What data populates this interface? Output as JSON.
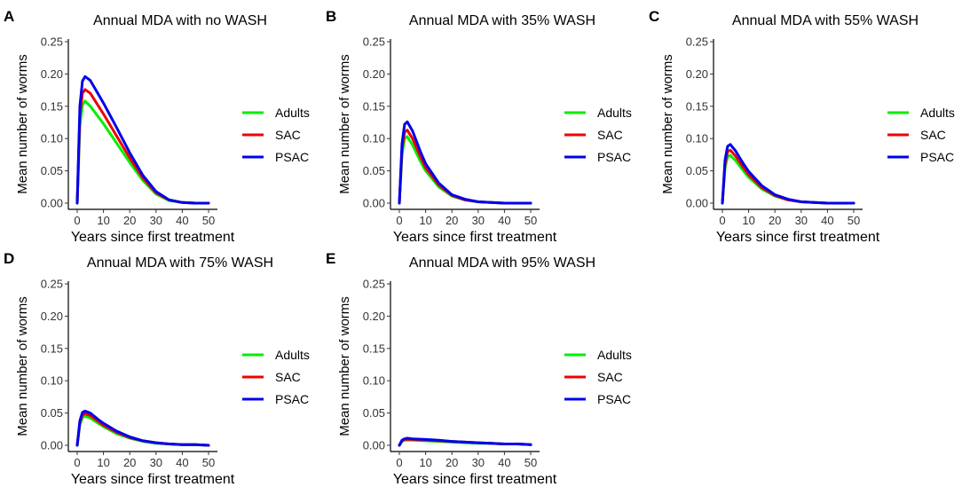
{
  "figure": {
    "legend_items": [
      {
        "label": "Adults",
        "color": "#00ee00"
      },
      {
        "label": "SAC",
        "color": "#ee0000"
      },
      {
        "label": "PSAC",
        "color": "#0000ee"
      }
    ]
  },
  "chart_data": [
    {
      "type": "line",
      "panel_letter": "A",
      "title": "Annual MDA with no WASH",
      "xlabel": "Years since first treatment",
      "ylabel": "Mean number of worms",
      "xlim": [
        0,
        50
      ],
      "ylim": [
        0,
        0.25
      ],
      "xticks": [
        0,
        10,
        20,
        30,
        40,
        50
      ],
      "yticks": [
        "0.00",
        "0.05",
        "0.10",
        "0.15",
        "0.20",
        "0.25"
      ],
      "legend": "right",
      "series": [
        {
          "name": "Adults",
          "color": "#00ee00",
          "x": [
            0,
            1,
            2,
            3,
            5,
            10,
            15,
            20,
            25,
            30,
            35,
            40,
            45,
            50
          ],
          "values": [
            0,
            0.12,
            0.152,
            0.158,
            0.15,
            0.123,
            0.093,
            0.063,
            0.035,
            0.014,
            0.004,
            0.001,
            0,
            0
          ]
        },
        {
          "name": "SAC",
          "color": "#ee0000",
          "x": [
            0,
            1,
            2,
            3,
            5,
            10,
            15,
            20,
            25,
            30,
            35,
            40,
            45,
            50
          ],
          "values": [
            0,
            0.135,
            0.17,
            0.176,
            0.17,
            0.138,
            0.104,
            0.07,
            0.039,
            0.016,
            0.005,
            0.001,
            0,
            0
          ]
        },
        {
          "name": "PSAC",
          "color": "#0000ee",
          "x": [
            0,
            1,
            2,
            3,
            5,
            10,
            15,
            20,
            25,
            30,
            35,
            40,
            45,
            50
          ],
          "values": [
            0,
            0.15,
            0.189,
            0.196,
            0.19,
            0.155,
            0.117,
            0.078,
            0.043,
            0.018,
            0.005,
            0.001,
            0,
            0
          ]
        }
      ]
    },
    {
      "type": "line",
      "panel_letter": "B",
      "title": "Annual MDA with 35% WASH",
      "xlabel": "Years since first treatment",
      "ylabel": "Mean number of worms",
      "xlim": [
        0,
        50
      ],
      "ylim": [
        0,
        0.25
      ],
      "xticks": [
        0,
        10,
        20,
        30,
        40,
        50
      ],
      "yticks": [
        "0.00",
        "0.05",
        "0.10",
        "0.15",
        "0.20",
        "0.25"
      ],
      "legend": "right",
      "series": [
        {
          "name": "Adults",
          "color": "#00ee00",
          "x": [
            0,
            1,
            2,
            3,
            5,
            8,
            10,
            15,
            20,
            25,
            30,
            35,
            40,
            45,
            50
          ],
          "values": [
            0,
            0.075,
            0.1,
            0.103,
            0.09,
            0.065,
            0.05,
            0.025,
            0.011,
            0.005,
            0.002,
            0.001,
            0,
            0,
            0
          ]
        },
        {
          "name": "SAC",
          "color": "#ee0000",
          "x": [
            0,
            1,
            2,
            3,
            5,
            8,
            10,
            15,
            20,
            25,
            30,
            35,
            40,
            45,
            50
          ],
          "values": [
            0,
            0.083,
            0.11,
            0.113,
            0.1,
            0.072,
            0.055,
            0.028,
            0.012,
            0.005,
            0.002,
            0.001,
            0,
            0,
            0
          ]
        },
        {
          "name": "PSAC",
          "color": "#0000ee",
          "x": [
            0,
            1,
            2,
            3,
            5,
            8,
            10,
            15,
            20,
            25,
            30,
            35,
            40,
            45,
            50
          ],
          "values": [
            0,
            0.092,
            0.122,
            0.126,
            0.112,
            0.08,
            0.061,
            0.031,
            0.013,
            0.006,
            0.002,
            0.001,
            0,
            0,
            0
          ]
        }
      ]
    },
    {
      "type": "line",
      "panel_letter": "C",
      "title": "Annual MDA with 55% WASH",
      "xlabel": "Years since first treatment",
      "ylabel": "Mean number of worms",
      "xlim": [
        0,
        50
      ],
      "ylim": [
        0,
        0.25
      ],
      "xticks": [
        0,
        10,
        20,
        30,
        40,
        50
      ],
      "yticks": [
        "0.00",
        "0.05",
        "0.10",
        "0.15",
        "0.20",
        "0.25"
      ],
      "legend": "right",
      "series": [
        {
          "name": "Adults",
          "color": "#00ee00",
          "x": [
            0,
            1,
            2,
            3,
            5,
            8,
            10,
            15,
            20,
            25,
            30,
            35,
            40,
            45,
            50
          ],
          "values": [
            0,
            0.055,
            0.072,
            0.074,
            0.066,
            0.05,
            0.04,
            0.022,
            0.011,
            0.005,
            0.002,
            0.001,
            0,
            0,
            0
          ]
        },
        {
          "name": "SAC",
          "color": "#ee0000",
          "x": [
            0,
            1,
            2,
            3,
            5,
            8,
            10,
            15,
            20,
            25,
            30,
            35,
            40,
            45,
            50
          ],
          "values": [
            0,
            0.061,
            0.08,
            0.082,
            0.073,
            0.055,
            0.044,
            0.024,
            0.012,
            0.005,
            0.002,
            0.001,
            0,
            0,
            0
          ]
        },
        {
          "name": "PSAC",
          "color": "#0000ee",
          "x": [
            0,
            1,
            2,
            3,
            5,
            8,
            10,
            15,
            20,
            25,
            30,
            35,
            40,
            45,
            50
          ],
          "values": [
            0,
            0.067,
            0.088,
            0.091,
            0.081,
            0.061,
            0.049,
            0.027,
            0.013,
            0.006,
            0.002,
            0.001,
            0,
            0,
            0
          ]
        }
      ]
    },
    {
      "type": "line",
      "panel_letter": "D",
      "title": "Annual MDA with 75% WASH",
      "xlabel": "Years since first treatment",
      "ylabel": "Mean number of worms",
      "xlim": [
        0,
        50
      ],
      "ylim": [
        0,
        0.25
      ],
      "xticks": [
        0,
        10,
        20,
        30,
        40,
        50
      ],
      "yticks": [
        "0.00",
        "0.05",
        "0.10",
        "0.15",
        "0.20",
        "0.25"
      ],
      "legend": "right",
      "series": [
        {
          "name": "Adults",
          "color": "#00ee00",
          "x": [
            0,
            1,
            2,
            3,
            5,
            8,
            10,
            15,
            20,
            25,
            30,
            35,
            40,
            45,
            50
          ],
          "values": [
            0,
            0.032,
            0.043,
            0.045,
            0.042,
            0.034,
            0.029,
            0.018,
            0.011,
            0.006,
            0.003,
            0.002,
            0.001,
            0.001,
            0
          ]
        },
        {
          "name": "SAC",
          "color": "#ee0000",
          "x": [
            0,
            1,
            2,
            3,
            5,
            8,
            10,
            15,
            20,
            25,
            30,
            35,
            40,
            45,
            50
          ],
          "values": [
            0,
            0.035,
            0.047,
            0.049,
            0.046,
            0.037,
            0.031,
            0.02,
            0.012,
            0.007,
            0.004,
            0.002,
            0.001,
            0.001,
            0
          ]
        },
        {
          "name": "PSAC",
          "color": "#0000ee",
          "x": [
            0,
            1,
            2,
            3,
            5,
            8,
            10,
            15,
            20,
            25,
            30,
            35,
            40,
            45,
            50
          ],
          "values": [
            0,
            0.038,
            0.051,
            0.053,
            0.05,
            0.04,
            0.034,
            0.022,
            0.013,
            0.007,
            0.004,
            0.002,
            0.001,
            0.001,
            0
          ]
        }
      ]
    },
    {
      "type": "line",
      "panel_letter": "E",
      "title": "Annual MDA with 95% WASH",
      "xlabel": "Years since first treatment",
      "ylabel": "Mean number of worms",
      "xlim": [
        0,
        50
      ],
      "ylim": [
        0,
        0.25
      ],
      "xticks": [
        0,
        10,
        20,
        30,
        40,
        50
      ],
      "yticks": [
        "0.00",
        "0.05",
        "0.10",
        "0.15",
        "0.20",
        "0.25"
      ],
      "legend": "right",
      "series": [
        {
          "name": "Adults",
          "color": "#00ee00",
          "x": [
            0,
            1,
            2,
            3,
            5,
            10,
            15,
            20,
            25,
            30,
            35,
            40,
            45,
            50
          ],
          "values": [
            0,
            0.006,
            0.008,
            0.008,
            0.008,
            0.007,
            0.006,
            0.005,
            0.004,
            0.003,
            0.003,
            0.002,
            0.002,
            0.001
          ]
        },
        {
          "name": "SAC",
          "color": "#ee0000",
          "x": [
            0,
            1,
            2,
            3,
            5,
            10,
            15,
            20,
            25,
            30,
            35,
            40,
            45,
            50
          ],
          "values": [
            0,
            0.007,
            0.009,
            0.009,
            0.009,
            0.008,
            0.007,
            0.006,
            0.005,
            0.004,
            0.003,
            0.002,
            0.002,
            0.001
          ]
        },
        {
          "name": "PSAC",
          "color": "#0000ee",
          "x": [
            0,
            1,
            2,
            3,
            5,
            10,
            15,
            20,
            25,
            30,
            35,
            40,
            45,
            50
          ],
          "values": [
            0,
            0.008,
            0.01,
            0.011,
            0.01,
            0.009,
            0.008,
            0.006,
            0.005,
            0.004,
            0.003,
            0.002,
            0.002,
            0.001
          ]
        }
      ]
    }
  ]
}
